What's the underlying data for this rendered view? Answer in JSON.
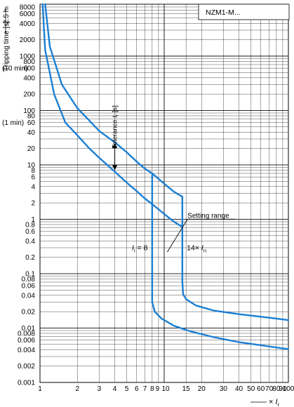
{
  "chart_data": {
    "type": "line",
    "title": "NZM1-M...",
    "ylabel": "Tripping time [s]",
    "ylabel_marker": "2.5 h",
    "xlabel": "× I_r",
    "x_scale": "log",
    "y_scale": "log",
    "xlim": [
      1,
      100
    ],
    "ylim": [
      0.001,
      9000
    ],
    "grid": true,
    "x_ticks": [
      {
        "v": 1,
        "label": "1"
      },
      {
        "v": 2,
        "label": "2"
      },
      {
        "v": 3,
        "label": "3"
      },
      {
        "v": 4,
        "label": "4"
      },
      {
        "v": 5,
        "label": "5"
      },
      {
        "v": 6,
        "label": "6"
      },
      {
        "v": 7,
        "label": "7"
      },
      {
        "v": 8,
        "label": "8"
      },
      {
        "v": 9,
        "label": "9"
      },
      {
        "v": 10,
        "label": "10"
      },
      {
        "v": 15,
        "label": "15"
      },
      {
        "v": 20,
        "label": "20"
      },
      {
        "v": 30,
        "label": "30"
      },
      {
        "v": 40,
        "label": "40"
      },
      {
        "v": 50,
        "label": "50"
      },
      {
        "v": 60,
        "label": "60"
      },
      {
        "v": 70,
        "label": "70"
      },
      {
        "v": 80,
        "label": "80"
      },
      {
        "v": 90,
        "label": "90"
      },
      {
        "v": 100,
        "label": "100"
      }
    ],
    "y_ticks": [
      {
        "v": 8000,
        "label": "8000"
      },
      {
        "v": 6000,
        "label": "6000"
      },
      {
        "v": 4000,
        "label": "4000"
      },
      {
        "v": 2000,
        "label": "2000"
      },
      {
        "v": 1000,
        "label": "1000"
      },
      {
        "v": 800,
        "label": "800"
      },
      {
        "v": 600,
        "label": "600"
      },
      {
        "v": 400,
        "label": "400"
      },
      {
        "v": 200,
        "label": "200"
      },
      {
        "v": 100,
        "label": "100"
      },
      {
        "v": 80,
        "label": "80"
      },
      {
        "v": 60,
        "label": "60"
      },
      {
        "v": 40,
        "label": "40"
      },
      {
        "v": 20,
        "label": "20"
      },
      {
        "v": 10,
        "label": "10"
      },
      {
        "v": 8,
        "label": "8"
      },
      {
        "v": 6,
        "label": "6"
      },
      {
        "v": 4,
        "label": "4"
      },
      {
        "v": 2,
        "label": "2"
      },
      {
        "v": 1,
        "label": "1"
      },
      {
        "v": 0.8,
        "label": "0.8"
      },
      {
        "v": 0.6,
        "label": "0.6"
      },
      {
        "v": 0.4,
        "label": "0.4"
      },
      {
        "v": 0.2,
        "label": "0.2"
      },
      {
        "v": 0.1,
        "label": "0.1"
      },
      {
        "v": 0.08,
        "label": "0.08"
      },
      {
        "v": 0.06,
        "label": "0.06"
      },
      {
        "v": 0.04,
        "label": "0.04"
      },
      {
        "v": 0.02,
        "label": "0.02"
      },
      {
        "v": 0.01,
        "label": "0.01"
      },
      {
        "v": 0.008,
        "label": "0.008"
      },
      {
        "v": 0.006,
        "label": "0.006"
      },
      {
        "v": 0.004,
        "label": "0.004"
      },
      {
        "v": 0.002,
        "label": "0.002"
      },
      {
        "v": 0.001,
        "label": "0.001"
      }
    ],
    "y_time_labels": [
      {
        "v": 600,
        "label": "(10 min)"
      },
      {
        "v": 60,
        "label": "(1 min)"
      }
    ],
    "series": [
      {
        "color": "#1a7fd4",
        "points": [
          [
            1.1,
            9000
          ],
          [
            1.2,
            1500
          ],
          [
            1.5,
            300
          ],
          [
            2,
            110
          ],
          [
            2.5,
            65
          ],
          [
            3,
            42
          ],
          [
            4,
            26
          ],
          [
            5,
            17
          ],
          [
            6,
            11.5
          ],
          [
            7,
            8.5
          ],
          [
            8,
            7
          ],
          [
            10,
            4.5
          ],
          [
            12,
            3.2
          ],
          [
            14,
            2.6
          ]
        ]
      },
      {
        "color": "#1a7fd4",
        "points": [
          [
            1.05,
            9000
          ],
          [
            1.1,
            1300
          ],
          [
            1.3,
            200
          ],
          [
            1.6,
            60
          ],
          [
            2,
            35
          ],
          [
            2.5,
            20
          ],
          [
            3,
            13.5
          ],
          [
            4,
            7.5
          ],
          [
            5,
            4.7
          ],
          [
            6,
            3.3
          ],
          [
            7,
            2.4
          ],
          [
            8,
            1.9
          ],
          [
            10,
            1.25
          ],
          [
            12,
            0.9
          ],
          [
            14,
            0.72
          ]
        ]
      },
      {
        "color": "#1a7fd4",
        "points": [
          [
            14,
            2.6
          ],
          [
            14,
            0.072
          ],
          [
            14.2,
            0.042
          ],
          [
            15,
            0.034
          ],
          [
            18,
            0.026
          ],
          [
            25,
            0.021
          ],
          [
            40,
            0.018
          ],
          [
            70,
            0.0155
          ],
          [
            100,
            0.014
          ]
        ]
      },
      {
        "color": "#1a7fd4",
        "points": [
          [
            8,
            7
          ],
          [
            8,
            0.03
          ],
          [
            8.4,
            0.02
          ],
          [
            9.5,
            0.015
          ],
          [
            12,
            0.011
          ],
          [
            16,
            0.0088
          ],
          [
            25,
            0.0068
          ],
          [
            40,
            0.0055
          ],
          [
            70,
            0.0046
          ],
          [
            100,
            0.0041
          ]
        ]
      }
    ],
    "annotations": {
      "tolerance_label": "Tolerance t_r [s]",
      "tolerance_arrow": {
        "x": 4,
        "y_top": 25,
        "y_bottom": 8
      },
      "setting_range": "Setting range",
      "setting_range_anchor": {
        "x": 10.6,
        "y": 0.25
      },
      "setting_range_at": {
        "x": 15,
        "y": 1.2
      },
      "i_label": "I_i = 8",
      "i_label_at": {
        "x": 5.5,
        "y": 0.27
      },
      "n_label": "14× I_n",
      "n_label_at": {
        "x": 15.2,
        "y": 0.27
      }
    }
  }
}
